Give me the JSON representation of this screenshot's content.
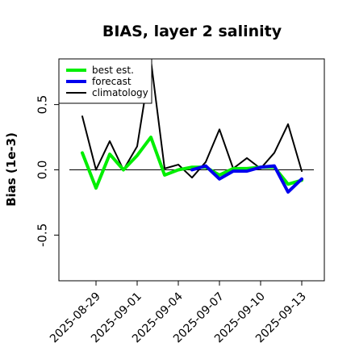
{
  "chart_data": {
    "type": "line",
    "title": "BIAS, layer 2 salinity",
    "xlabel": "",
    "ylabel": "Bias (1e-3)",
    "ylim": [
      -0.85,
      0.85
    ],
    "yticks": [
      -0.5,
      0.0,
      0.5
    ],
    "ytick_labels": [
      "-0.5",
      "0.0",
      "0.5"
    ],
    "zero_line": true,
    "grid": false,
    "legend_position": "top-left",
    "x": [
      "2025-08-28",
      "2025-08-29",
      "2025-08-30",
      "2025-08-31",
      "2025-09-01",
      "2025-09-02",
      "2025-09-03",
      "2025-09-04",
      "2025-09-05",
      "2025-09-06",
      "2025-09-07",
      "2025-09-08",
      "2025-09-09",
      "2025-09-10",
      "2025-09-11",
      "2025-09-12",
      "2025-09-13"
    ],
    "x_tick_labels": [
      {
        "date": "2025-08-29",
        "label": "2025-08-29",
        "color": "#000000"
      },
      {
        "date": "2025-09-01",
        "label": "2025-09-01",
        "color": "#000000"
      },
      {
        "date": "2025-09-04",
        "label": "2025-09-04",
        "color": "#228B22"
      },
      {
        "date": "2025-09-07",
        "label": "2025-09-07",
        "color": "#000000"
      },
      {
        "date": "2025-09-10",
        "label": "2025-09-10",
        "color": "#000000"
      },
      {
        "date": "2025-09-13",
        "label": "2025-09-13",
        "color": "#000000"
      }
    ],
    "series": [
      {
        "name": "best est.",
        "color": "#00ee00",
        "width": 4,
        "values": [
          0.13,
          -0.14,
          0.12,
          0.0,
          0.11,
          0.25,
          -0.04,
          0.0,
          0.02,
          0.02,
          -0.04,
          0.01,
          0.01,
          0.02,
          0.02,
          -0.11,
          -0.08
        ]
      },
      {
        "name": "forecast",
        "color": "#0000ee",
        "width": 4,
        "values": [
          null,
          null,
          null,
          null,
          null,
          null,
          null,
          null,
          0.0,
          0.03,
          -0.07,
          -0.01,
          -0.01,
          0.02,
          0.03,
          -0.17,
          -0.07
        ]
      },
      {
        "name": "climatology",
        "color": "#000000",
        "width": 2,
        "values": [
          0.41,
          0.0,
          0.22,
          0.0,
          0.18,
          0.84,
          0.01,
          0.04,
          -0.06,
          0.06,
          0.31,
          0.01,
          0.09,
          0.01,
          0.13,
          0.35,
          -0.01
        ]
      }
    ]
  }
}
